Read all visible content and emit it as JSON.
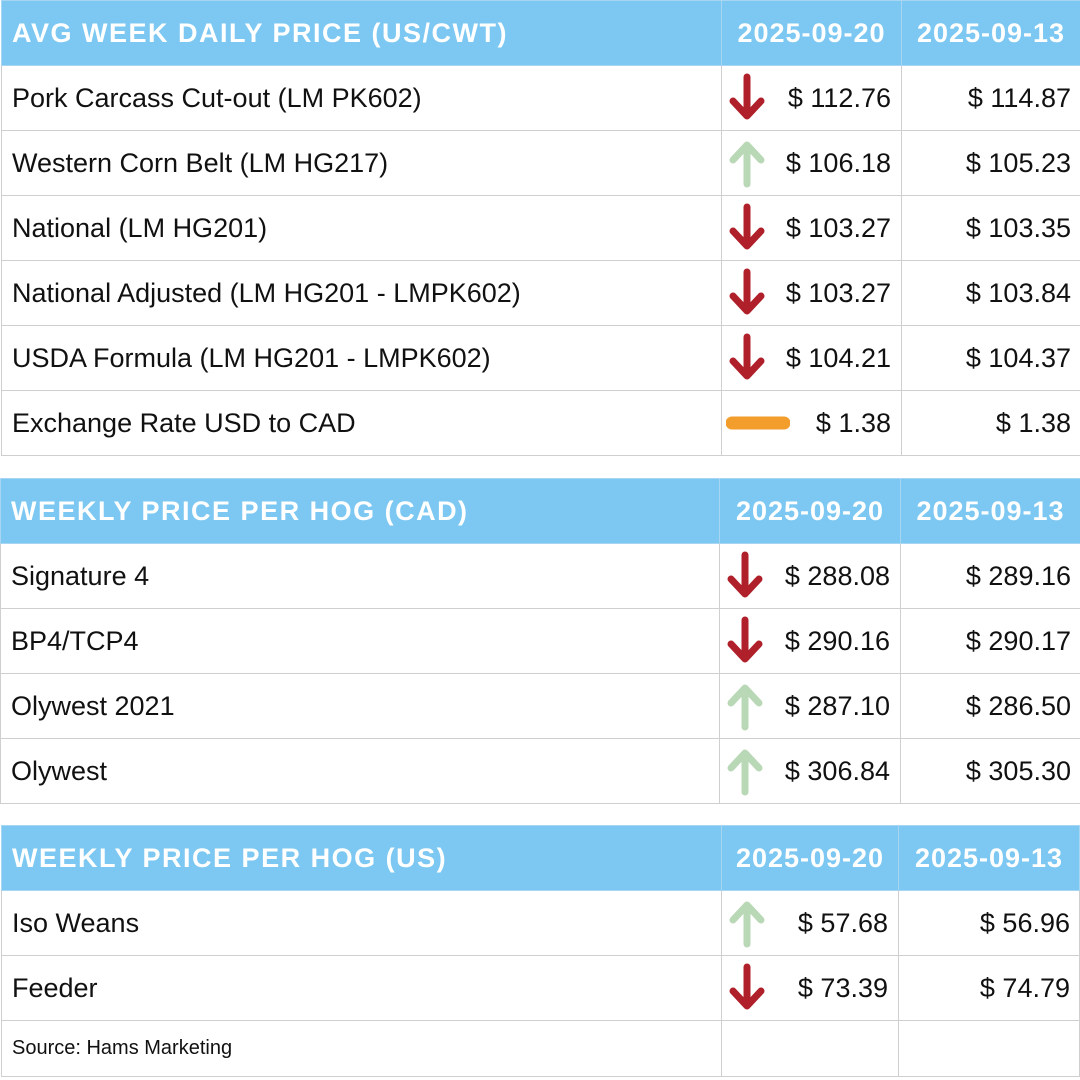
{
  "colors": {
    "header_bg": "#7cc8f2",
    "down": "#b0202a",
    "up": "#b9d8b6",
    "flat": "#f29d2c"
  },
  "tables": [
    {
      "title": "AVG WEEK DAILY PRICE (US/CWT)",
      "date_current": "2025-09-20",
      "date_previous": "2025-09-13",
      "rows": [
        {
          "label": "Pork Carcass Cut-out (LM PK602)",
          "trend": "down",
          "current": "$ 112.76",
          "previous": "$ 114.87"
        },
        {
          "label": "Western Corn Belt (LM HG217)",
          "trend": "up",
          "current": "$ 106.18",
          "previous": "$ 105.23"
        },
        {
          "label": "National (LM HG201)",
          "trend": "down",
          "current": "$ 103.27",
          "previous": "$ 103.35"
        },
        {
          "label": "National Adjusted (LM HG201 - LMPK602)",
          "trend": "down",
          "current": "$ 103.27",
          "previous": "$ 103.84"
        },
        {
          "label": "USDA Formula (LM HG201 - LMPK602)",
          "trend": "down",
          "current": "$ 104.21",
          "previous": "$ 104.37"
        },
        {
          "label": "Exchange Rate USD to CAD",
          "trend": "flat",
          "current": "$ 1.38",
          "previous": "$ 1.38"
        }
      ]
    },
    {
      "title": "WEEKLY PRICE PER HOG (CAD)",
      "date_current": "2025-09-20",
      "date_previous": "2025-09-13",
      "rows": [
        {
          "label": "Signature 4",
          "trend": "down",
          "current": "$ 288.08",
          "previous": "$ 289.16"
        },
        {
          "label": "BP4/TCP4",
          "trend": "down",
          "current": "$ 290.16",
          "previous": "$ 290.17"
        },
        {
          "label": "Olywest 2021",
          "trend": "up",
          "current": "$ 287.10",
          "previous": "$ 286.50"
        },
        {
          "label": "Olywest",
          "trend": "up",
          "current": "$ 306.84",
          "previous": "$ 305.30"
        }
      ]
    },
    {
      "title": "WEEKLY PRICE PER HOG (US)",
      "date_current": "2025-09-20",
      "date_previous": "2025-09-13",
      "rows": [
        {
          "label": "Iso Weans",
          "trend": "up",
          "current": "$ 57.68",
          "previous": "$ 56.96"
        },
        {
          "label": "Feeder",
          "trend": "down",
          "current": "$ 73.39",
          "previous": "$ 74.79"
        }
      ],
      "source": "Source: Hams Marketing"
    }
  ]
}
